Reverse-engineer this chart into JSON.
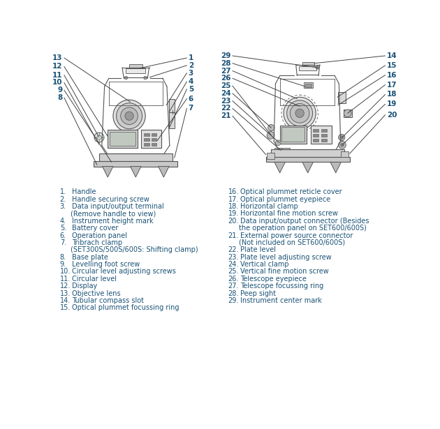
{
  "bg_color": "#ffffff",
  "text_color": "#1a5276",
  "line_color": "#444444",
  "fig_width": 6.3,
  "fig_height": 6.15,
  "left_labels": [
    [
      1,
      "Handle"
    ],
    [
      2,
      "Handle securing screw"
    ],
    [
      3,
      "Data input/output terminal"
    ],
    [
      3,
      "   (Remove handle to view)"
    ],
    [
      4,
      "Instrument height mark"
    ],
    [
      5,
      "Battery cover"
    ],
    [
      6,
      "Operation panel"
    ],
    [
      7,
      "Tribrach clamp"
    ],
    [
      7,
      "   (SET300S/500S/600S: Shifting clamp)"
    ],
    [
      8,
      "Base plate"
    ],
    [
      9,
      "Levelling foot screw"
    ],
    [
      10,
      "Circular level adjusting screws"
    ],
    [
      11,
      "Circular level"
    ],
    [
      12,
      "Display"
    ],
    [
      13,
      "Objective lens"
    ],
    [
      14,
      "Tubular compass slot"
    ],
    [
      15,
      "Optical plummet focussing ring"
    ]
  ],
  "right_labels": [
    [
      16,
      "Optical plummet reticle cover"
    ],
    [
      17,
      "Optical plummet eyepiece"
    ],
    [
      18,
      "Horizontal clamp"
    ],
    [
      19,
      "Horizontal fine motion screw"
    ],
    [
      20,
      "Data input/output connector (Besides"
    ],
    [
      20,
      "   the operation panel on SET600/600S)"
    ],
    [
      21,
      "External power source connector"
    ],
    [
      21,
      "   (Not included on SET600/600S)"
    ],
    [
      22,
      "Plate level"
    ],
    [
      23,
      "Plate level adjusting screw"
    ],
    [
      24,
      "Vertical clamp"
    ],
    [
      25,
      "Vertical fine motion screw"
    ],
    [
      26,
      "Telescope eyepiece"
    ],
    [
      27,
      "Telescope focussing ring"
    ],
    [
      28,
      "Peep sight"
    ],
    [
      29,
      "Instrument center mark"
    ]
  ]
}
